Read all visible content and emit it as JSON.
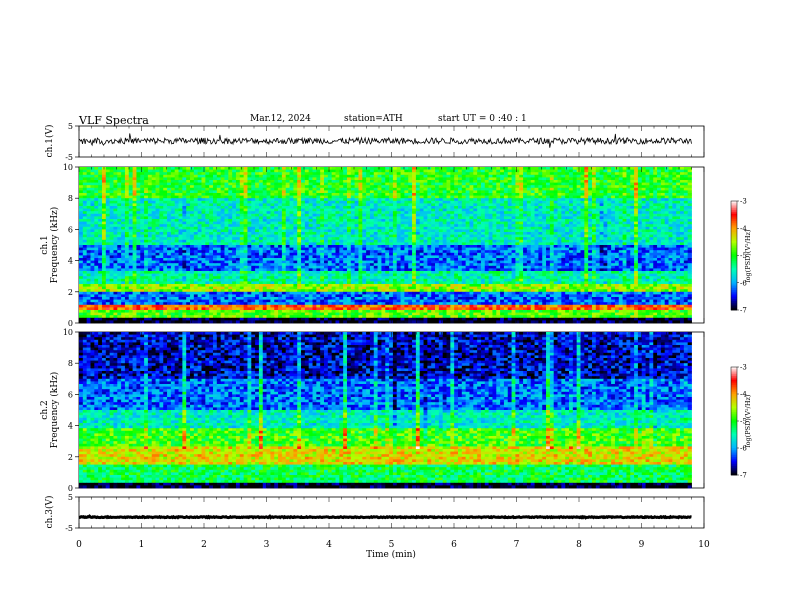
{
  "header": {
    "title": "VLF  Spectra",
    "date": "Mar.12, 2024",
    "station": "station=ATH",
    "start_ut": "start  UT  =    0  :40 : 1"
  },
  "chart_data": [
    {
      "type": "line",
      "panel": "ch1-waveform",
      "ylabel": "ch.1(V)",
      "ylim": [
        -5,
        5
      ],
      "yticks": [
        "5",
        "-5"
      ],
      "xlim": [
        0,
        10
      ],
      "note_values": "dense oscillating waveform near 0 V with small spikes",
      "baseline": 0.2,
      "amplitude": 1.0
    },
    {
      "type": "heatmap",
      "panel": "ch1-spectrogram",
      "ylabel_top": "ch.1",
      "ylabel": "Frequency  (kHz)",
      "ylim": [
        0,
        10
      ],
      "yticks": [
        "0",
        "2",
        "4",
        "6",
        "8",
        "10"
      ],
      "xlim": [
        0,
        9.8
      ],
      "bands_khz": [
        {
          "from": 0.0,
          "to": 0.3,
          "level": -7
        },
        {
          "from": 0.3,
          "to": 0.9,
          "level": -4.8
        },
        {
          "from": 0.9,
          "to": 1.2,
          "level": -3.8
        },
        {
          "from": 1.2,
          "to": 2.0,
          "level": -6.2
        },
        {
          "from": 2.0,
          "to": 2.5,
          "level": -4.6
        },
        {
          "from": 2.5,
          "to": 3.4,
          "level": -5.5
        },
        {
          "from": 3.4,
          "to": 5.0,
          "level": -6.2
        },
        {
          "from": 5.0,
          "to": 6.0,
          "level": -5.6
        },
        {
          "from": 6.0,
          "to": 8.0,
          "level": -5.6
        },
        {
          "from": 8.0,
          "to": 10.0,
          "level": -5.0
        }
      ]
    },
    {
      "type": "heatmap",
      "panel": "ch2-spectrogram",
      "ylabel_top": "ch.2",
      "ylabel": "Frequency  (kHz)",
      "ylim": [
        0,
        10
      ],
      "yticks": [
        "0",
        "2",
        "4",
        "6",
        "8",
        "10"
      ],
      "xlim": [
        0,
        9.8
      ],
      "bands_khz": [
        {
          "from": 0.0,
          "to": 0.3,
          "level": -7
        },
        {
          "from": 0.3,
          "to": 1.5,
          "level": -5.2
        },
        {
          "from": 1.5,
          "to": 2.6,
          "level": -4.3
        },
        {
          "from": 2.6,
          "to": 3.8,
          "level": -4.9
        },
        {
          "from": 3.8,
          "to": 5.0,
          "level": -5.6
        },
        {
          "from": 5.0,
          "to": 7.0,
          "level": -6.2
        },
        {
          "from": 7.0,
          "to": 10.0,
          "level": -6.6
        }
      ]
    },
    {
      "type": "line",
      "panel": "ch3-waveform",
      "ylabel": "ch.3(V)",
      "ylim": [
        -5,
        5
      ],
      "yticks": [
        "5",
        "-5"
      ],
      "xlim": [
        0,
        10
      ],
      "note_values": "flat thick line near -1.5 V",
      "baseline": -1.5,
      "amplitude": 0.15
    }
  ],
  "xaxis": {
    "label": "Time  (min)",
    "ticks": [
      "0",
      "1",
      "2",
      "3",
      "4",
      "5",
      "6",
      "7",
      "8",
      "9",
      "10"
    ]
  },
  "colorbar": {
    "label": "log(PSD)(V²/Hz)",
    "ticks": [
      "-3",
      "-4",
      "-5",
      "-6",
      "-7"
    ],
    "range": [
      -7,
      -3
    ],
    "colors": [
      "#000000",
      "#0000ff",
      "#00b4ff",
      "#00ffb4",
      "#00ff00",
      "#b4ff00",
      "#ffa000",
      "#ff0000",
      "#ffffff"
    ]
  }
}
